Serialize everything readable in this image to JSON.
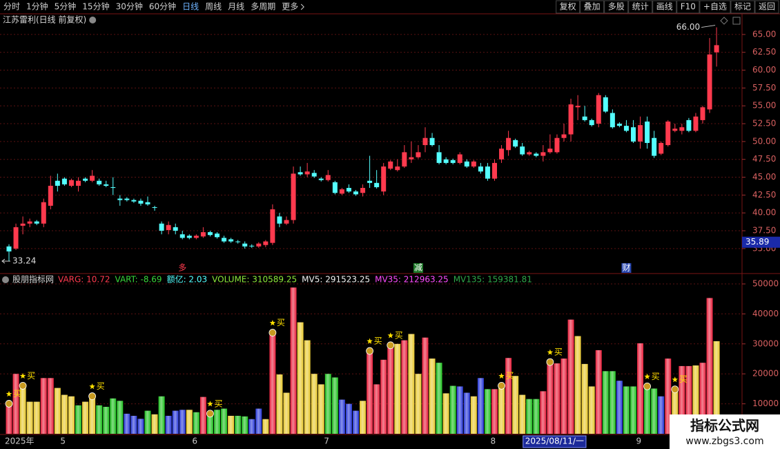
{
  "toolbar": {
    "periods": [
      "分时",
      "1分钟",
      "5分钟",
      "15分钟",
      "30分钟",
      "60分钟",
      {
        "label": "日线",
        "active": true
      },
      "周线",
      "月线",
      "多周期",
      "更多"
    ],
    "buttons": [
      "复权",
      "叠加",
      "多股",
      "统计",
      "画线",
      "F10",
      "+自选",
      "标记",
      "返回"
    ]
  },
  "chart_data": [
    {
      "type": "candlestick",
      "title": "江苏雷利(日线 前复权)",
      "open": [
        35.3,
        35,
        38.2,
        38.5,
        38.8,
        38.5,
        41,
        44.5,
        44.8,
        43.8,
        43.8,
        44.8,
        44.5,
        44.5,
        44,
        43.6,
        42,
        42,
        41.8,
        41.7,
        41.5,
        40.8,
        38.5,
        37.6,
        38,
        37,
        36.8,
        36.5,
        36.7,
        37.3,
        37.1,
        36.5,
        36.3,
        36,
        35.7,
        35.4,
        35.3,
        35.5,
        35.8,
        39.5,
        38.5,
        39,
        45.7,
        45.4,
        45.6,
        44.8,
        44.6,
        44.3,
        42.7,
        43.5,
        43,
        42.8,
        44.5,
        44.2,
        43,
        46.2,
        46,
        46.5,
        47.5,
        47.8,
        49.5,
        50.5,
        48.5,
        47.5,
        47.4,
        47,
        47.2,
        46.5,
        46.5,
        46.5,
        44.8,
        47.5,
        48.8,
        50.2,
        49.3,
        48.2,
        48.3,
        48,
        48.5,
        48.5,
        50.5,
        51,
        54.8,
        53.5,
        53,
        52.5,
        56.2,
        54,
        52.5,
        52.2,
        52,
        50,
        52.8,
        50.5,
        48.3,
        49.5,
        51.5,
        51.5,
        53,
        51.5,
        53,
        54.5,
        62.5
      ],
      "high": [
        35.6,
        38.5,
        39.5,
        39.2,
        39,
        42,
        45.2,
        45.5,
        45,
        44.8,
        45,
        45,
        46,
        44.8,
        44.5,
        45,
        42.5,
        42.2,
        42,
        42,
        42.3,
        41,
        38.8,
        38.8,
        38.5,
        37.5,
        37,
        37,
        38,
        37.5,
        37.3,
        36.8,
        36.5,
        36.2,
        36,
        35.6,
        35.9,
        36.2,
        41.2,
        40,
        39.5,
        46.5,
        46.5,
        47,
        46,
        45,
        46,
        44.5,
        43.5,
        44,
        43.2,
        44,
        48,
        46,
        47,
        47.4,
        47.5,
        49.5,
        50,
        49.5,
        52,
        51.2,
        49.5,
        47.8,
        47.6,
        48.5,
        47.5,
        47.4,
        47,
        47,
        47.5,
        49.5,
        51.5,
        50.4,
        49.8,
        48.7,
        48.5,
        49.5,
        51,
        51,
        52.5,
        56,
        56.5,
        55,
        53.2,
        56.8,
        56.5,
        54.5,
        52.7,
        53,
        53,
        53.5,
        53.5,
        51.5,
        50,
        53,
        52.5,
        52.5,
        53.3,
        54,
        55,
        64.5,
        66
      ],
      "low": [
        33.24,
        34.8,
        37,
        38,
        38.3,
        38,
        40.5,
        43,
        43.8,
        43.6,
        43,
        44.3,
        44.3,
        43.8,
        43.6,
        42.5,
        41,
        41.6,
        41.4,
        41,
        41,
        40.3,
        37,
        37,
        37,
        36.3,
        36.3,
        36.3,
        36.5,
        36.7,
        36.4,
        35.8,
        35.8,
        35.7,
        35,
        35.1,
        35.1,
        35.2,
        35.5,
        38,
        38.3,
        38.5,
        45.2,
        45,
        44.9,
        44.4,
        44.4,
        42.6,
        42.5,
        42.8,
        42.4,
        42.3,
        43.5,
        43.4,
        42.5,
        46,
        45.8,
        46.3,
        47,
        47.6,
        48.5,
        49.3,
        46.8,
        46.8,
        46.8,
        46.8,
        46.3,
        46.3,
        45.5,
        44.5,
        44.5,
        47,
        48,
        49.1,
        48,
        48,
        47.8,
        47.2,
        48.3,
        48.3,
        50,
        50,
        53,
        52.8,
        52.1,
        52,
        54,
        51.8,
        52,
        51.3,
        49.8,
        49,
        49,
        47.7,
        48.1,
        49.3,
        51.3,
        51,
        51.3,
        51.3,
        52.5,
        54,
        60.5
      ],
      "close": [
        34.6,
        38,
        38.5,
        38.8,
        38.5,
        41.5,
        43.8,
        43.8,
        44,
        44.6,
        44.5,
        44.5,
        45.2,
        44,
        43.8,
        43.5,
        41.8,
        41.8,
        41.6,
        41.3,
        41.2,
        40.7,
        37.5,
        38.3,
        37.5,
        36.5,
        36.5,
        36.8,
        37.3,
        36.9,
        36.6,
        36,
        36,
        35.9,
        35.3,
        35.3,
        35.7,
        36,
        40.5,
        38.5,
        39,
        45.5,
        45.4,
        45.8,
        45.1,
        44.6,
        45.3,
        42.8,
        43.3,
        43,
        42.6,
        43.5,
        44.2,
        43.6,
        46.5,
        47.2,
        46.5,
        48.5,
        47.8,
        48.5,
        50.5,
        49.5,
        47,
        47,
        47,
        48.2,
        46.5,
        47.2,
        45.8,
        44.8,
        47,
        49,
        50.5,
        49.3,
        48.2,
        48.5,
        48,
        48.5,
        49,
        50.5,
        51,
        55.2,
        55,
        53,
        52.3,
        56.5,
        54.2,
        52,
        52.2,
        51.5,
        50,
        52.3,
        49.8,
        48,
        49.8,
        52.8,
        51.8,
        52,
        51.5,
        53.5,
        54.8,
        62.2,
        63.5
      ],
      "up_color": "#ff3a4e",
      "down_color": "#54ffff",
      "ylim": [
        31.6,
        67.7
      ],
      "yticks": [
        {
          "value": 35,
          "label": "35.00"
        },
        {
          "value": 37.5,
          "label": "37.50"
        },
        {
          "value": 40,
          "label": "40.00"
        },
        {
          "value": 42.5,
          "label": "42.50"
        },
        {
          "value": 45,
          "label": "45.00"
        },
        {
          "value": 47.5,
          "label": "47.50"
        },
        {
          "value": 50,
          "label": "50.00"
        },
        {
          "value": 52.5,
          "label": "52.50"
        },
        {
          "value": 55,
          "label": "55.00"
        },
        {
          "value": 57.5,
          "label": "57.50"
        },
        {
          "value": 60,
          "label": "60.00"
        },
        {
          "value": 62.5,
          "label": "62.50"
        },
        {
          "value": 65,
          "label": "65.00"
        }
      ],
      "grid": true,
      "high_label": "66.00",
      "low_label": "33.24",
      "price_marker": {
        "value": 35.89,
        "label": "35.89"
      },
      "markers": [
        {
          "label": "多",
          "x": 25,
          "text_color": "#ff3a4e",
          "background": "#000000"
        },
        {
          "label": "减",
          "x": 59,
          "text_color": "#ffffff",
          "background": "#1f7a2a"
        },
        {
          "label": "财",
          "x": 89,
          "text_color": "#ffffff",
          "background": "#2a48b0"
        }
      ]
    },
    {
      "type": "bar",
      "title": "股朋指标网",
      "legend": [
        {
          "text": "VARG: 10.72",
          "color": "#ff3a4e"
        },
        {
          "text": "VART: -8.69",
          "color": "#3ad83a"
        },
        {
          "text": "额亿: 2.03",
          "color": "#54ffff"
        },
        {
          "text": "VOLUME: 310589.25",
          "color": "#8ee83a"
        },
        {
          "text": "MV5: 291523.25",
          "color": "#f0f0f0"
        },
        {
          "text": "MV35: 212963.25",
          "color": "#ff4cff"
        },
        {
          "text": "MV135: 159381.81",
          "color": "#2fa84a"
        }
      ],
      "categories": [
        "2025年",
        null,
        null,
        null,
        null,
        null,
        null,
        null,
        "5",
        null,
        null,
        null,
        null,
        null,
        null,
        null,
        null,
        null,
        null,
        null,
        null,
        null,
        null,
        null,
        null,
        null,
        null,
        "6",
        null,
        null,
        null,
        null,
        null,
        null,
        null,
        null,
        null,
        null,
        null,
        null,
        null,
        null,
        null,
        null,
        null,
        null,
        "7",
        null,
        null,
        null,
        null,
        null,
        null,
        null,
        null,
        null,
        null,
        null,
        null,
        null,
        null,
        null,
        null,
        null,
        null,
        null,
        null,
        null,
        null,
        null,
        "8",
        null,
        null,
        null,
        null,
        "2025/08/11/一",
        null,
        null,
        null,
        null,
        null,
        null,
        null,
        null,
        null,
        null,
        null,
        null,
        null,
        null,
        null,
        "9",
        null,
        null,
        null,
        null,
        null,
        null,
        null,
        null,
        null,
        null,
        null
      ],
      "values": [
        10500,
        20000,
        16500,
        10700,
        10700,
        18600,
        18600,
        15300,
        13000,
        12500,
        9500,
        10700,
        13000,
        9500,
        9000,
        11800,
        11000,
        6700,
        6000,
        5000,
        7700,
        6500,
        12500,
        6000,
        7700,
        8000,
        8000,
        7200,
        12300,
        7200,
        8000,
        8400,
        6000,
        6000,
        5800,
        4900,
        8400,
        4900,
        34200,
        19800,
        13700,
        48800,
        37200,
        31200,
        20000,
        16500,
        20000,
        18800,
        11400,
        10000,
        7700,
        11000,
        28100,
        16500,
        24700,
        30000,
        30000,
        31200,
        33300,
        20000,
        32100,
        25100,
        23700,
        13500,
        16000,
        15800,
        13700,
        12500,
        18600,
        14900,
        14900,
        16500,
        25300,
        19300,
        13000,
        11600,
        11600,
        14200,
        24400,
        23500,
        25100,
        38100,
        32600,
        23300,
        15800,
        27900,
        20900,
        20900,
        17700,
        15800,
        15800,
        30200,
        16300,
        15100,
        12500,
        25100,
        15300,
        22600,
        22600,
        22800,
        23700,
        45300,
        30900
      ],
      "colors": [
        "#e8203c",
        "#e8203c",
        "#e8c830",
        "#e8c830",
        "#e8c830",
        "#e8203c",
        "#e8203c",
        "#e8c830",
        "#e8c830",
        "#e8c830",
        "#20c020",
        "#e8c830",
        "#e8c830",
        "#20c020",
        "#20c020",
        "#20c020",
        "#20c020",
        "#2838d8",
        "#2838d8",
        "#2838d8",
        "#20c020",
        "#e8c830",
        "#20c020",
        "#2838d8",
        "#2838d8",
        "#2838d8",
        "#e8c830",
        "#20c020",
        "#e8203c",
        "#20c020",
        "#20c020",
        "#20c020",
        "#e8c830",
        "#20c020",
        "#20c020",
        "#2838d8",
        "#2838d8",
        "#e8c830",
        "#e8203c",
        "#e8c830",
        "#e8c830",
        "#e8203c",
        "#e8c830",
        "#e8c830",
        "#e8c830",
        "#e8c830",
        "#20c020",
        "#20c020",
        "#2838d8",
        "#2838d8",
        "#2838d8",
        "#e8c830",
        "#e8203c",
        "#e8203c",
        "#e8203c",
        "#e8203c",
        "#e8c830",
        "#e8203c",
        "#e8c830",
        "#e8c830",
        "#e8203c",
        "#e8c830",
        "#20c020",
        "#e8c830",
        "#20c020",
        "#2838d8",
        "#2838d8",
        "#e8c830",
        "#2838d8",
        "#20c020",
        "#e8203c",
        "#e8c830",
        "#e8203c",
        "#e8c830",
        "#e8c830",
        "#20c020",
        "#20c020",
        "#e8203c",
        "#e8203c",
        "#e8203c",
        "#e8203c",
        "#e8203c",
        "#e8c830",
        "#e8c830",
        "#e8c830",
        "#e8203c",
        "#20c020",
        "#20c020",
        "#2838d8",
        "#20c020",
        "#20c020",
        "#e8203c",
        "#20c020",
        "#20c020",
        "#2838d8",
        "#e8203c",
        "#e8c830",
        "#e8203c",
        "#e8203c",
        "#e8c830",
        "#e8203c",
        "#e8203c",
        "#e8c830"
      ],
      "ylim": [
        0,
        53000
      ],
      "yticks": [
        10000,
        20000,
        30000,
        40000,
        50000
      ],
      "grid": true,
      "signals": [
        {
          "label": "买",
          "x": 0
        },
        {
          "label": "买",
          "x": 2
        },
        {
          "label": "买",
          "x": 12
        },
        {
          "label": "买",
          "x": 29
        },
        {
          "label": "买",
          "x": 38
        },
        {
          "label": "买",
          "x": 52
        },
        {
          "label": "买",
          "x": 55
        },
        {
          "label": "买",
          "x": 71
        },
        {
          "label": "买",
          "x": 78
        },
        {
          "label": "买",
          "x": 92
        },
        {
          "label": "买",
          "x": 96
        }
      ],
      "signal_color": "#ffe000"
    }
  ],
  "watermark": {
    "title": "指标公式网",
    "url": "www.zbgs3.com"
  }
}
